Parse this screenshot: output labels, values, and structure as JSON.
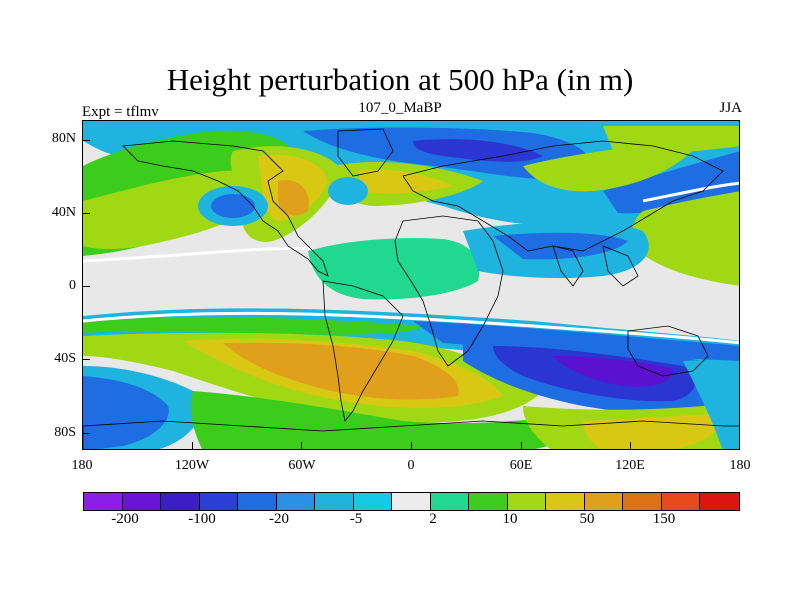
{
  "title": "Height perturbation at 500 hPa (in m)",
  "subtitle": "107_0_MaBP",
  "left_label": "Expt = tflmv",
  "right_label": "JJA",
  "lat_ticks": [
    "80N",
    "40N",
    "0",
    "40S",
    "80S"
  ],
  "lon_ticks": [
    "180",
    "120W",
    "60W",
    "0",
    "60E",
    "120E",
    "180"
  ],
  "colorbar": {
    "colors": [
      "#8a1fe8",
      "#6a14d8",
      "#3c1ec8",
      "#2a3fd8",
      "#1f6de2",
      "#2a90e6",
      "#1fb4e0",
      "#17c8e6",
      "#ececec",
      "#20d890",
      "#3ccd1c",
      "#a0d814",
      "#d8c814",
      "#e0a01c",
      "#dc7214",
      "#e84a1c",
      "#dc1414"
    ],
    "labels": [
      "-200",
      "-100",
      "-20",
      "-5",
      "2",
      "10",
      "50",
      "150"
    ]
  },
  "colors": {
    "purple": "#5a12d0",
    "dark_blue": "#2a35d2",
    "blue": "#1f6de2",
    "light_blue": "#1fb4e0",
    "gray": "#ececec",
    "green": "#3ccd1c",
    "yellow_green": "#a0d814",
    "yellow": "#d8c814",
    "orange": "#e0a01c",
    "dark_orange": "#dc7214"
  }
}
